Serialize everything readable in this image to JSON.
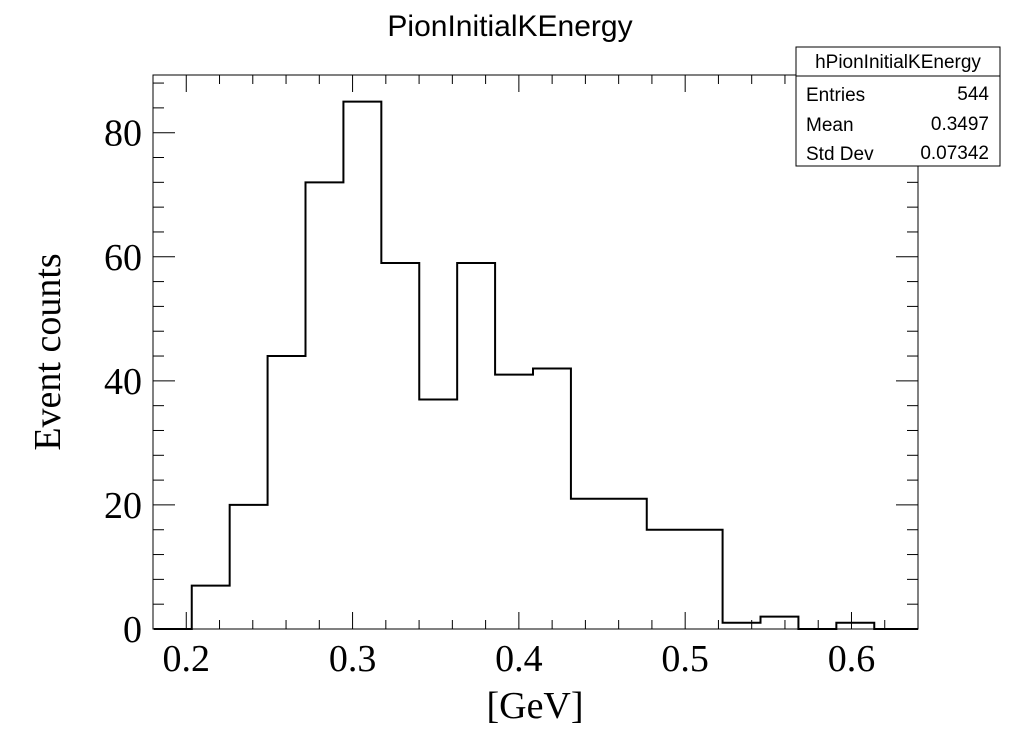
{
  "chart_data": {
    "type": "bar",
    "title": "PionInitialKEnergy",
    "xlabel": "[GeV]",
    "ylabel": "Event counts",
    "xlim": [
      0.18,
      0.64
    ],
    "ylim": [
      0,
      89.3
    ],
    "x_ticks": [
      0.2,
      0.3,
      0.4,
      0.5,
      0.6
    ],
    "x_tick_labels": [
      "0.2",
      "0.3",
      "0.4",
      "0.5",
      "0.6"
    ],
    "y_ticks": [
      0,
      20,
      40,
      60,
      80
    ],
    "y_tick_labels": [
      "0",
      "20",
      "40",
      "60",
      "80"
    ],
    "bin_edges": [
      0.1805,
      0.2033,
      0.2261,
      0.2489,
      0.2717,
      0.2945,
      0.3173,
      0.3401,
      0.3629,
      0.3857,
      0.4085,
      0.4313,
      0.4541,
      0.4769,
      0.4997,
      0.5225,
      0.5453,
      0.5681,
      0.5909,
      0.6137,
      0.64
    ],
    "values": [
      0,
      7,
      20,
      44,
      72,
      85,
      59,
      37,
      59,
      41,
      42,
      21,
      21,
      16,
      16,
      1,
      2,
      0,
      1,
      0
    ],
    "grid": false,
    "legend": "none",
    "stats_box": {
      "name": "hPionInitialKEnergy",
      "rows": [
        {
          "label": "Entries",
          "value": "544"
        },
        {
          "label": "Mean",
          "value": "0.3497"
        },
        {
          "label": "Std Dev",
          "value": "0.07342"
        }
      ],
      "placement": "top-right"
    }
  }
}
